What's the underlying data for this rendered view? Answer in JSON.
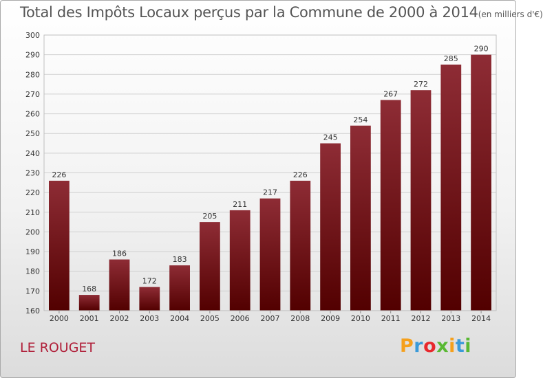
{
  "page": {
    "title_main": "Total des Impôts Locaux perçus par la Commune de 2000 à 2014",
    "title_unit": "(en milliers d'€)",
    "commune": "LE ROUGET",
    "logo": {
      "letters": [
        "P",
        "r",
        "o",
        "x",
        "i",
        "t",
        "i"
      ],
      "colors": [
        "#f5a01c",
        "#3a9ad9",
        "#e8282d",
        "#59b833",
        "#f5a01c",
        "#3a9ad9",
        "#59b833"
      ]
    }
  },
  "chart_data": {
    "type": "bar",
    "title": "Total des Impôts Locaux perçus par la Commune de 2000 à 2014 (en milliers d'€)",
    "categories": [
      "2000",
      "2001",
      "2002",
      "2003",
      "2004",
      "2005",
      "2006",
      "2007",
      "2008",
      "2009",
      "2010",
      "2011",
      "2012",
      "2013",
      "2014"
    ],
    "values": [
      226,
      168,
      186,
      172,
      183,
      205,
      211,
      217,
      226,
      245,
      254,
      267,
      272,
      285,
      290
    ],
    "ylim": [
      160,
      300
    ],
    "yticks": [
      160,
      170,
      180,
      190,
      200,
      210,
      220,
      230,
      240,
      250,
      260,
      270,
      280,
      290,
      300
    ],
    "grid": true,
    "colors": {
      "bar_top": "#8e2c35",
      "bar_bottom": "#520000",
      "grid": "#cfcfcf"
    }
  }
}
